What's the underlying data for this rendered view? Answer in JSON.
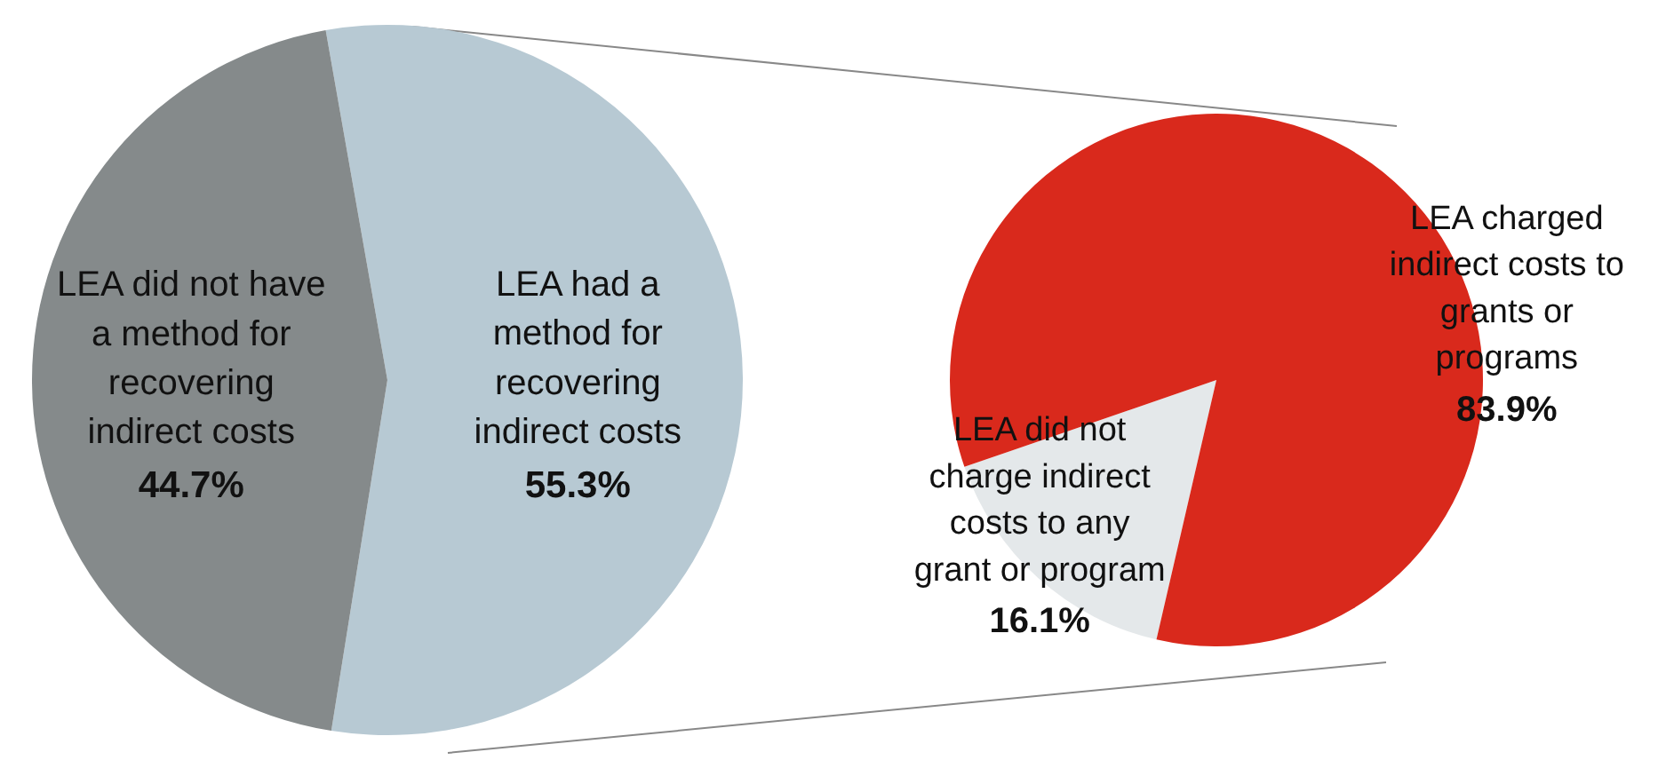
{
  "chart_data": [
    {
      "type": "pie",
      "categories": [
        "LEA had a method for recovering indirect costs",
        "LEA did not have a method for recovering indirect costs"
      ],
      "values": [
        55.3,
        44.7
      ],
      "colors": [
        "#b7c9d3",
        "#858a8b"
      ],
      "value_labels": [
        "55.3%",
        "44.7%"
      ]
    },
    {
      "type": "pie",
      "categories": [
        "LEA did not charge indirect costs to any grant or program",
        "LEA charged indirect costs to grants or programs"
      ],
      "values": [
        16.1,
        83.9
      ],
      "colors": [
        "#e4e8ea",
        "#d9291c"
      ],
      "value_labels": [
        "16.1%",
        "83.9%"
      ]
    }
  ]
}
